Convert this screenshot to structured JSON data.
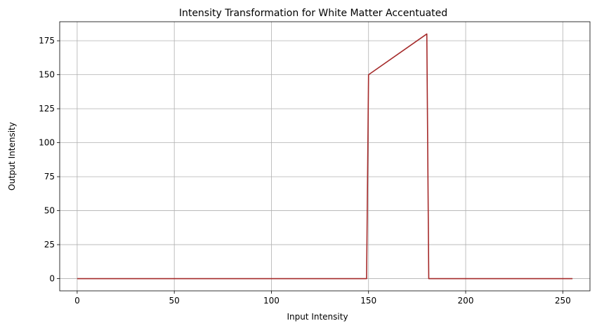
{
  "chart_data": {
    "type": "line",
    "title": "Intensity Transformation for White Matter Accentuated",
    "xlabel": "Input Intensity",
    "ylabel": "Output Intensity",
    "xlim": [
      -9,
      264
    ],
    "ylim": [
      -9,
      189
    ],
    "xticks": [
      0,
      50,
      100,
      150,
      200,
      250
    ],
    "yticks": [
      0,
      25,
      50,
      75,
      100,
      125,
      150,
      175
    ],
    "grid": true,
    "legend": "none",
    "series": [
      {
        "color": "#a52a2a",
        "x": [
          0,
          149,
          150,
          180,
          181,
          255
        ],
        "y": [
          0,
          0,
          150,
          180,
          0,
          0
        ]
      }
    ]
  }
}
